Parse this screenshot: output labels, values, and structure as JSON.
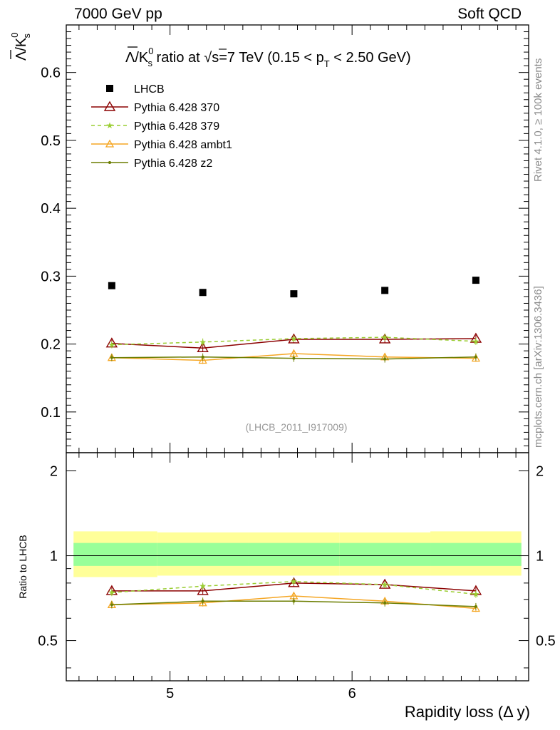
{
  "header": {
    "left": "7000 GeV pp",
    "right": "Soft QCD"
  },
  "side_labels": {
    "top": "Rivet 4.1.0, ≥ 100k events",
    "bottom": "mcplots.cern.ch [arXiv:1306.3436]"
  },
  "chart_data": {
    "type": "scatter",
    "title": {
      "main": "Λ/K",
      "sup": "0",
      "sub": "s",
      "rest": " ratio at √s=7 TeV (0.15 < p",
      "pt_sub": "T",
      "end": " < 2.50 GeV)"
    },
    "ylabel": {
      "main": "Λ/K",
      "sup": "0",
      "sub": "s"
    },
    "xlabel": "Rapidity loss (Δ y)",
    "ratio_ylabel": "Ratio to LHCB",
    "analysis_id": "(LHCB_2011_I917009)",
    "xlim": [
      4.43,
      6.97
    ],
    "ylim": [
      0.04,
      0.67
    ],
    "ratio_ylim": [
      0.36,
      2.32
    ],
    "x_ticks": [
      "5",
      "6"
    ],
    "y_ticks": [
      "0.1",
      "0.2",
      "0.3",
      "0.4",
      "0.5",
      "0.6"
    ],
    "ratio_ticks": [
      "0.5",
      "1",
      "2"
    ],
    "x": [
      4.68,
      5.18,
      5.68,
      6.18,
      6.68
    ],
    "bin_edges": [
      4.43,
      4.93,
      5.43,
      5.93,
      6.43,
      6.93
    ],
    "reference": {
      "name": "LHCB",
      "values": [
        0.286,
        0.276,
        0.274,
        0.279,
        0.294
      ],
      "stat_band": [
        [
          0.92,
          1.11
        ],
        [
          0.92,
          1.11
        ],
        [
          0.92,
          1.11
        ],
        [
          0.92,
          1.11
        ],
        [
          0.92,
          1.11
        ]
      ],
      "total_band": [
        [
          0.84,
          1.22
        ],
        [
          0.85,
          1.21
        ],
        [
          0.85,
          1.21
        ],
        [
          0.85,
          1.21
        ],
        [
          0.85,
          1.22
        ]
      ]
    },
    "series": [
      {
        "name": "Pythia 6.428 370",
        "color": "#8b0000",
        "dash": "none",
        "marker": "triangle-open-large",
        "values": [
          0.201,
          0.194,
          0.207,
          0.207,
          0.208
        ],
        "ratio": [
          0.75,
          0.75,
          0.8,
          0.79,
          0.75
        ]
      },
      {
        "name": "Pythia 6.428 379",
        "color": "#9acd32",
        "dash": "5,4",
        "marker": "star",
        "values": [
          0.199,
          0.203,
          0.208,
          0.21,
          0.204
        ],
        "ratio": [
          0.74,
          0.78,
          0.81,
          0.79,
          0.73
        ]
      },
      {
        "name": "Pythia 6.428 ambt1",
        "color": "#f5a623",
        "dash": "none",
        "marker": "triangle-open",
        "values": [
          0.18,
          0.176,
          0.186,
          0.181,
          0.179
        ],
        "ratio": [
          0.67,
          0.68,
          0.72,
          0.69,
          0.65
        ]
      },
      {
        "name": "Pythia 6.428 z2",
        "color": "#6b7d00",
        "dash": "none",
        "marker": "dot",
        "values": [
          0.18,
          0.181,
          0.179,
          0.178,
          0.181
        ],
        "ratio": [
          0.67,
          0.69,
          0.69,
          0.68,
          0.66
        ]
      }
    ]
  }
}
